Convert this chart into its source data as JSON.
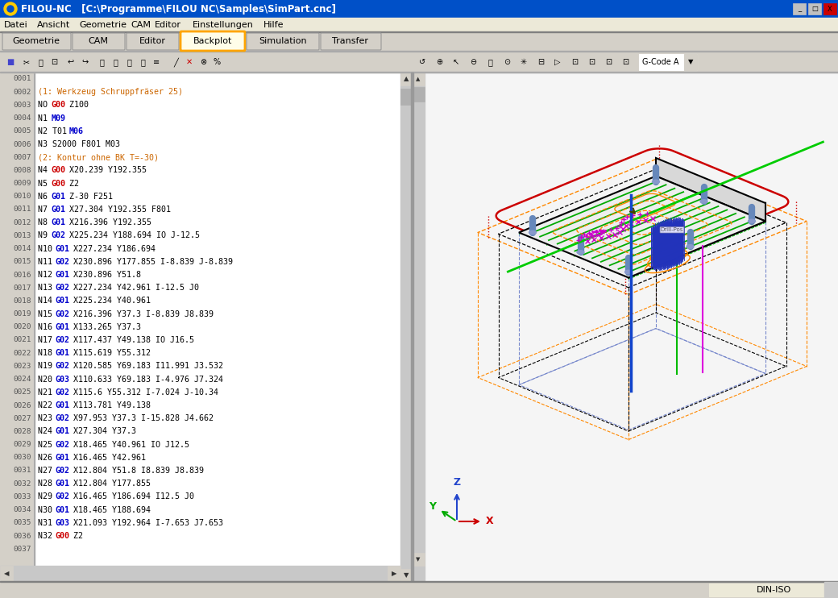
{
  "title_bar": "FILOU-NC   [C:\\Programme\\FILOU NC\\Samples\\SimPart.cnc]",
  "title_bar_bg": "#0050c8",
  "title_bar_fg": "#ffffff",
  "menu_items": [
    "Datei",
    "Ansicht",
    "Geometrie",
    "CAM",
    "Editor",
    "Einstellungen",
    "Hilfe"
  ],
  "tabs": [
    "Geometrie",
    "CAM",
    "Editor",
    "Backplot",
    "Simulation",
    "Transfer"
  ],
  "active_tab": "Backplot",
  "bg_color": "#d4d0c8",
  "editor_bg": "#ffffff",
  "right_bg": "#f8f8f8",
  "line_number_bg": "#c8c8c8",
  "status_bar_text": "DIN-ISO",
  "code_lines": [
    {
      "num": "0001",
      "parts": []
    },
    {
      "num": "0002",
      "parts": [
        {
          "t": "(1: Werkzeug Schruppfräser 25)",
          "c": "#cc6600",
          "b": false
        }
      ]
    },
    {
      "num": "0003",
      "parts": [
        {
          "t": "NO ",
          "c": "#000000",
          "b": false
        },
        {
          "t": "G00",
          "c": "#cc0000",
          "b": true
        },
        {
          "t": " Z100",
          "c": "#000000",
          "b": false
        }
      ]
    },
    {
      "num": "0004",
      "parts": [
        {
          "t": "N1 ",
          "c": "#000000",
          "b": false
        },
        {
          "t": "M09",
          "c": "#0000cc",
          "b": true
        }
      ]
    },
    {
      "num": "0005",
      "parts": [
        {
          "t": "N2 T01 ",
          "c": "#000000",
          "b": false
        },
        {
          "t": "M06",
          "c": "#0000cc",
          "b": true
        }
      ]
    },
    {
      "num": "0006",
      "parts": [
        {
          "t": "N3 S2000 F801 M03",
          "c": "#000000",
          "b": false
        }
      ]
    },
    {
      "num": "0007",
      "parts": [
        {
          "t": "(2: Kontur ohne BK T=-30)",
          "c": "#cc6600",
          "b": false
        }
      ]
    },
    {
      "num": "0008",
      "parts": [
        {
          "t": "N4 ",
          "c": "#000000",
          "b": false
        },
        {
          "t": "G00",
          "c": "#cc0000",
          "b": true
        },
        {
          "t": " X20.239 Y192.355",
          "c": "#000000",
          "b": false
        }
      ]
    },
    {
      "num": "0009",
      "parts": [
        {
          "t": "N5 ",
          "c": "#000000",
          "b": false
        },
        {
          "t": "G00",
          "c": "#cc0000",
          "b": true
        },
        {
          "t": " Z2",
          "c": "#000000",
          "b": false
        }
      ]
    },
    {
      "num": "0010",
      "parts": [
        {
          "t": "N6 ",
          "c": "#000000",
          "b": false
        },
        {
          "t": "G01",
          "c": "#0000cc",
          "b": true
        },
        {
          "t": " Z-30 F251",
          "c": "#000000",
          "b": false
        }
      ]
    },
    {
      "num": "0011",
      "parts": [
        {
          "t": "N7 ",
          "c": "#000000",
          "b": false
        },
        {
          "t": "G01",
          "c": "#0000cc",
          "b": true
        },
        {
          "t": " X27.304 Y192.355 F801",
          "c": "#000000",
          "b": false
        }
      ]
    },
    {
      "num": "0012",
      "parts": [
        {
          "t": "N8 ",
          "c": "#000000",
          "b": false
        },
        {
          "t": "G01",
          "c": "#0000cc",
          "b": true
        },
        {
          "t": " X216.396 Y192.355",
          "c": "#000000",
          "b": false
        }
      ]
    },
    {
      "num": "0013",
      "parts": [
        {
          "t": "N9 ",
          "c": "#000000",
          "b": false
        },
        {
          "t": "G02",
          "c": "#0000cc",
          "b": true
        },
        {
          "t": " X225.234 Y188.694 IO J-12.5",
          "c": "#000000",
          "b": false
        }
      ]
    },
    {
      "num": "0014",
      "parts": [
        {
          "t": "N10 ",
          "c": "#000000",
          "b": false
        },
        {
          "t": "G01",
          "c": "#0000cc",
          "b": true
        },
        {
          "t": " X227.234 Y186.694",
          "c": "#000000",
          "b": false
        }
      ]
    },
    {
      "num": "0015",
      "parts": [
        {
          "t": "N11 ",
          "c": "#000000",
          "b": false
        },
        {
          "t": "G02",
          "c": "#0000cc",
          "b": true
        },
        {
          "t": " X230.896 Y177.855 I-8.839 J-8.839",
          "c": "#000000",
          "b": false
        }
      ]
    },
    {
      "num": "0016",
      "parts": [
        {
          "t": "N12 ",
          "c": "#000000",
          "b": false
        },
        {
          "t": "G01",
          "c": "#0000cc",
          "b": true
        },
        {
          "t": " X230.896 Y51.8",
          "c": "#000000",
          "b": false
        }
      ]
    },
    {
      "num": "0017",
      "parts": [
        {
          "t": "N13 ",
          "c": "#000000",
          "b": false
        },
        {
          "t": "G02",
          "c": "#0000cc",
          "b": true
        },
        {
          "t": " X227.234 Y42.961 I-12.5 J0",
          "c": "#000000",
          "b": false
        }
      ]
    },
    {
      "num": "0018",
      "parts": [
        {
          "t": "N14 ",
          "c": "#000000",
          "b": false
        },
        {
          "t": "G01",
          "c": "#0000cc",
          "b": true
        },
        {
          "t": " X225.234 Y40.961",
          "c": "#000000",
          "b": false
        }
      ]
    },
    {
      "num": "0019",
      "parts": [
        {
          "t": "N15 ",
          "c": "#000000",
          "b": false
        },
        {
          "t": "G02",
          "c": "#0000cc",
          "b": true
        },
        {
          "t": " X216.396 Y37.3 I-8.839 J8.839",
          "c": "#000000",
          "b": false
        }
      ]
    },
    {
      "num": "0020",
      "parts": [
        {
          "t": "N16 ",
          "c": "#000000",
          "b": false
        },
        {
          "t": "G01",
          "c": "#0000cc",
          "b": true
        },
        {
          "t": " X133.265 Y37.3",
          "c": "#000000",
          "b": false
        }
      ]
    },
    {
      "num": "0021",
      "parts": [
        {
          "t": "N17 ",
          "c": "#000000",
          "b": false
        },
        {
          "t": "G02",
          "c": "#0000cc",
          "b": true
        },
        {
          "t": " X117.437 Y49.138 IO J16.5",
          "c": "#000000",
          "b": false
        }
      ]
    },
    {
      "num": "0022",
      "parts": [
        {
          "t": "N18 ",
          "c": "#000000",
          "b": false
        },
        {
          "t": "G01",
          "c": "#0000cc",
          "b": true
        },
        {
          "t": " X115.619 Y55.312",
          "c": "#000000",
          "b": false
        }
      ]
    },
    {
      "num": "0023",
      "parts": [
        {
          "t": "N19 ",
          "c": "#000000",
          "b": false
        },
        {
          "t": "G02",
          "c": "#0000cc",
          "b": true
        },
        {
          "t": " X120.585 Y69.183 I11.991 J3.532",
          "c": "#000000",
          "b": false
        }
      ]
    },
    {
      "num": "0024",
      "parts": [
        {
          "t": "N20 ",
          "c": "#000000",
          "b": false
        },
        {
          "t": "G03",
          "c": "#0000cc",
          "b": true
        },
        {
          "t": " X110.633 Y69.183 I-4.976 J7.324",
          "c": "#000000",
          "b": false
        }
      ]
    },
    {
      "num": "0025",
      "parts": [
        {
          "t": "N21 ",
          "c": "#000000",
          "b": false
        },
        {
          "t": "G02",
          "c": "#0000cc",
          "b": true
        },
        {
          "t": " X115.6 Y55.312 I-7.024 J-10.34",
          "c": "#000000",
          "b": false
        }
      ]
    },
    {
      "num": "0026",
      "parts": [
        {
          "t": "N22 ",
          "c": "#000000",
          "b": false
        },
        {
          "t": "G01",
          "c": "#0000cc",
          "b": true
        },
        {
          "t": " X113.781 Y49.138",
          "c": "#000000",
          "b": false
        }
      ]
    },
    {
      "num": "0027",
      "parts": [
        {
          "t": "N23 ",
          "c": "#000000",
          "b": false
        },
        {
          "t": "G02",
          "c": "#0000cc",
          "b": true
        },
        {
          "t": " X97.953 Y37.3 I-15.828 J4.662",
          "c": "#000000",
          "b": false
        }
      ]
    },
    {
      "num": "0028",
      "parts": [
        {
          "t": "N24 ",
          "c": "#000000",
          "b": false
        },
        {
          "t": "G01",
          "c": "#0000cc",
          "b": true
        },
        {
          "t": " X27.304 Y37.3",
          "c": "#000000",
          "b": false
        }
      ]
    },
    {
      "num": "0029",
      "parts": [
        {
          "t": "N25 ",
          "c": "#000000",
          "b": false
        },
        {
          "t": "G02",
          "c": "#0000cc",
          "b": true
        },
        {
          "t": " X18.465 Y40.961 IO J12.5",
          "c": "#000000",
          "b": false
        }
      ]
    },
    {
      "num": "0030",
      "parts": [
        {
          "t": "N26 ",
          "c": "#000000",
          "b": false
        },
        {
          "t": "G01",
          "c": "#0000cc",
          "b": true
        },
        {
          "t": " X16.465 Y42.961",
          "c": "#000000",
          "b": false
        }
      ]
    },
    {
      "num": "0031",
      "parts": [
        {
          "t": "N27 ",
          "c": "#000000",
          "b": false
        },
        {
          "t": "G02",
          "c": "#0000cc",
          "b": true
        },
        {
          "t": " X12.804 Y51.8 I8.839 J8.839",
          "c": "#000000",
          "b": false
        }
      ]
    },
    {
      "num": "0032",
      "parts": [
        {
          "t": "N28 ",
          "c": "#000000",
          "b": false
        },
        {
          "t": "G01",
          "c": "#0000cc",
          "b": true
        },
        {
          "t": " X12.804 Y177.855",
          "c": "#000000",
          "b": false
        }
      ]
    },
    {
      "num": "0033",
      "parts": [
        {
          "t": "N29 ",
          "c": "#000000",
          "b": false
        },
        {
          "t": "G02",
          "c": "#0000cc",
          "b": true
        },
        {
          "t": " X16.465 Y186.694 I12.5 J0",
          "c": "#000000",
          "b": false
        }
      ]
    },
    {
      "num": "0034",
      "parts": [
        {
          "t": "N30 ",
          "c": "#000000",
          "b": false
        },
        {
          "t": "G01",
          "c": "#0000cc",
          "b": true
        },
        {
          "t": " X18.465 Y188.694",
          "c": "#000000",
          "b": false
        }
      ]
    },
    {
      "num": "0035",
      "parts": [
        {
          "t": "N31 ",
          "c": "#000000",
          "b": false
        },
        {
          "t": "G03",
          "c": "#0000cc",
          "b": true
        },
        {
          "t": " X21.093 Y192.964 I-7.653 J7.653",
          "c": "#000000",
          "b": false
        }
      ]
    },
    {
      "num": "0036",
      "parts": [
        {
          "t": "N32 ",
          "c": "#000000",
          "b": false
        },
        {
          "t": "G00",
          "c": "#cc0000",
          "b": true
        },
        {
          "t": " Z2",
          "c": "#000000",
          "b": false
        }
      ]
    },
    {
      "num": "0037",
      "parts": []
    }
  ]
}
